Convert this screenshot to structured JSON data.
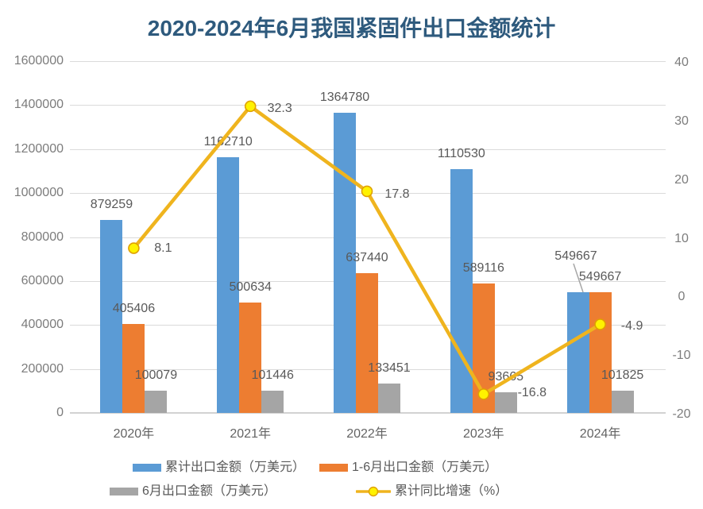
{
  "chart_data": {
    "type": "bar",
    "title": "2020-2024年6月我国紧固件出口金额统计",
    "categories": [
      "2020年",
      "2021年",
      "2022年",
      "2023年",
      "2024年"
    ],
    "series": [
      {
        "name": "累计出口金额（万美元）",
        "kind": "bar",
        "color": "#5B9BD5",
        "values": [
          879259,
          1162710,
          1364780,
          1110530,
          549667
        ]
      },
      {
        "name": "1-6月出口金额（万美元）",
        "kind": "bar",
        "color": "#ED7D31",
        "values": [
          405406,
          500634,
          637440,
          589116,
          549667
        ]
      },
      {
        "name": "6月出口金额（万美元）",
        "kind": "bar",
        "color": "#A5A5A5",
        "values": [
          100079,
          101446,
          133451,
          93665,
          101825
        ]
      },
      {
        "name": "累计同比增速（%）",
        "kind": "line",
        "color": "#EFB41E",
        "values": [
          8.1,
          32.3,
          17.8,
          -16.8,
          -4.9
        ]
      }
    ],
    "left_axis": {
      "min": 0,
      "max": 1600000,
      "step": 200000,
      "ticks": [
        "1600000",
        "1400000",
        "1200000",
        "1000000",
        "800000",
        "600000",
        "400000",
        "200000",
        "0"
      ]
    },
    "right_axis": {
      "min": -20,
      "max": 40,
      "step": 10,
      "ticks": [
        "40",
        "30",
        "20",
        "10",
        "0",
        "-10",
        "-20"
      ]
    },
    "legend_position": "bottom",
    "grid": true
  },
  "colors": {
    "title": "#2E5A7D",
    "grid": "#DADADA",
    "axis_line": "#D2D2D2",
    "tick_text": "#7C7C7C",
    "label_text": "#595959",
    "xlabel_text": "#636363",
    "marker_fill": "#FFF200",
    "marker_stroke": "#DFA000",
    "leader_line": "#A6A6A6",
    "background": "#FFFFFF"
  }
}
